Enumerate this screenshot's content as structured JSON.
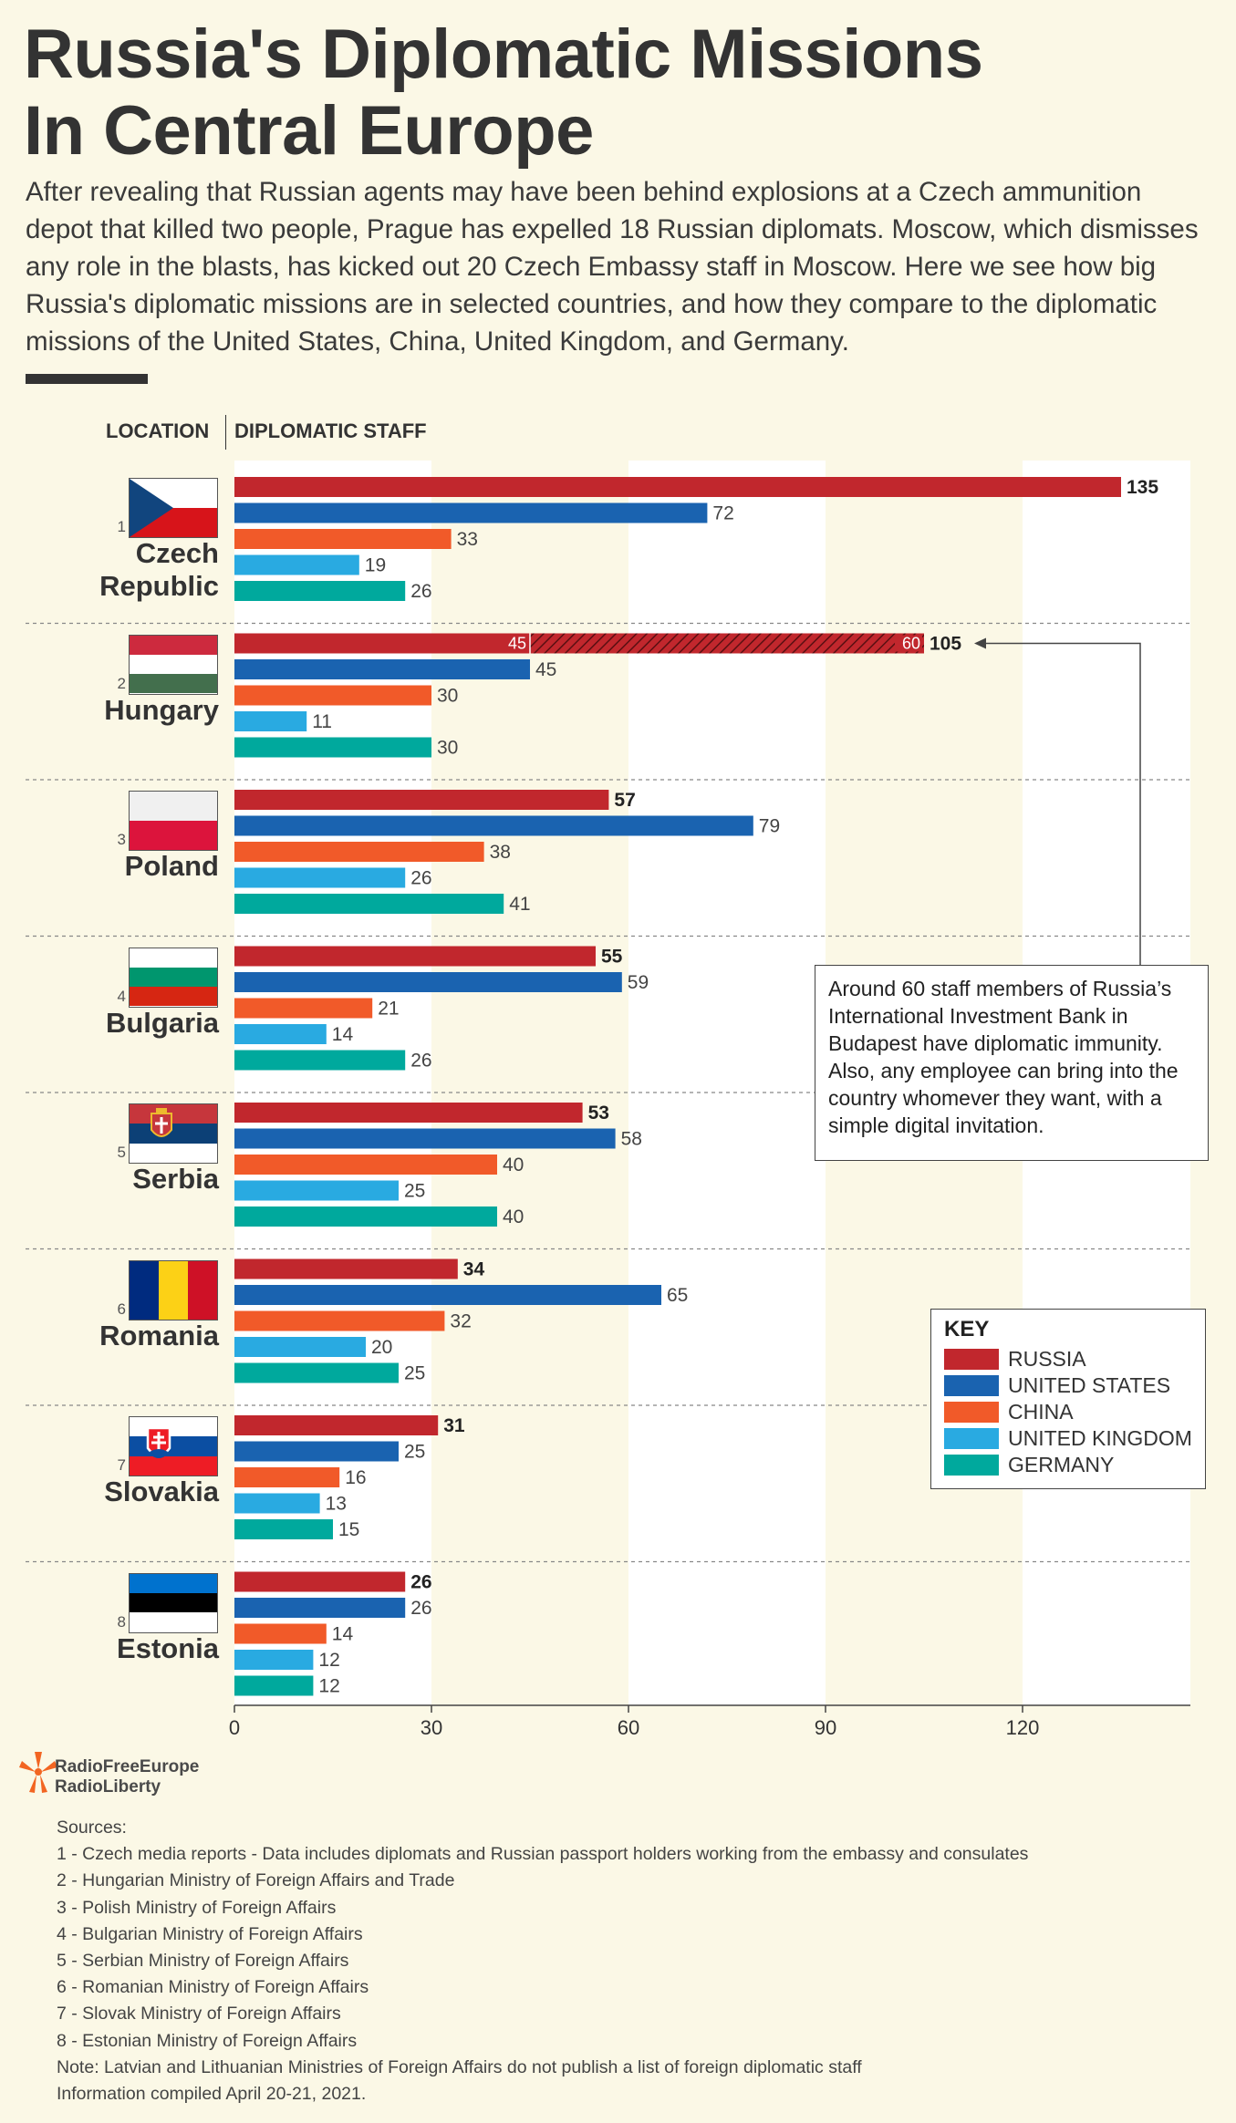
{
  "title_line1": "Russia's Diplomatic Missions",
  "title_line2": "In Central Europe",
  "intro": "After revealing that Russian agents may have been behind explosions at a Czech ammunition depot that killed two people, Prague has expelled 18 Russian diplomats. Moscow, which dismisses any role in the blasts, has kicked out 20 Czech Embassy staff in Moscow. Here we see how big Russia's diplomatic missions are in selected countries, and how they compare to the diplomatic missions of the United States, China, United Kingdom, and Germany.",
  "column_headers": {
    "location": "LOCATION",
    "staff": "DIPLOMATIC STAFF"
  },
  "colors": {
    "russia": "#c1272d",
    "united_states": "#1a63b0",
    "china": "#f15a29",
    "united_kingdom": "#29aae1",
    "germany": "#00a99d",
    "background": "#fbf8e6",
    "band": "#ffffff"
  },
  "chart_data": {
    "type": "bar",
    "orientation": "horizontal",
    "x_ticks": [
      0,
      30,
      60,
      90,
      120
    ],
    "xlim": [
      0,
      140
    ],
    "categories": [
      "Czech Republic",
      "Hungary",
      "Poland",
      "Bulgaria",
      "Serbia",
      "Romania",
      "Slovakia",
      "Estonia"
    ],
    "category_numbers": [
      "1",
      "2",
      "3",
      "4",
      "5",
      "6",
      "7",
      "8"
    ],
    "series": [
      {
        "name": "RUSSIA",
        "key": "russia",
        "values": [
          135,
          105,
          57,
          55,
          53,
          34,
          31,
          26
        ]
      },
      {
        "name": "UNITED STATES",
        "key": "united_states",
        "values": [
          72,
          45,
          79,
          59,
          58,
          65,
          25,
          26
        ]
      },
      {
        "name": "CHINA",
        "key": "china",
        "values": [
          33,
          30,
          38,
          21,
          40,
          32,
          16,
          14
        ]
      },
      {
        "name": "UNITED KINGDOM",
        "key": "united_kingdom",
        "values": [
          19,
          11,
          26,
          14,
          25,
          20,
          13,
          12
        ]
      },
      {
        "name": "GERMANY",
        "key": "germany",
        "values": [
          26,
          30,
          41,
          26,
          40,
          25,
          15,
          12
        ]
      }
    ],
    "hungary_russia_split": {
      "embassy": 45,
      "investment_bank": 60,
      "embassy_label": "45",
      "bank_label": "60"
    },
    "key_title": "KEY",
    "legend_position": "right"
  },
  "annotation": "Around 60 staff members of Russia’s International Investment Bank in Budapest have diplomatic immunity. Also, any employee can bring into the country whomever they want, with a simple digital invitation.",
  "logo_text_1": "RadioFreeEurope",
  "logo_text_2": "RadioLiberty",
  "sources": [
    "Sources:",
    "1 - Czech media reports - Data includes diplomats and Russian passport holders working from the embassy and consulates",
    "2 - Hungarian Ministry of Foreign Affairs and Trade",
    "3 - Polish Ministry of Foreign Affairs",
    "4 - Bulgarian Ministry of Foreign Affairs",
    "5 - Serbian Ministry of Foreign Affairs",
    "6 - Romanian Ministry of Foreign Affairs",
    "7 - Slovak Ministry of Foreign Affairs",
    "8 - Estonian Ministry of Foreign Affairs",
    "Note: Latvian and Lithuanian Ministries of Foreign Affairs do not publish a list of foreign diplomatic staff",
    "Information compiled April 20-21, 2021."
  ]
}
